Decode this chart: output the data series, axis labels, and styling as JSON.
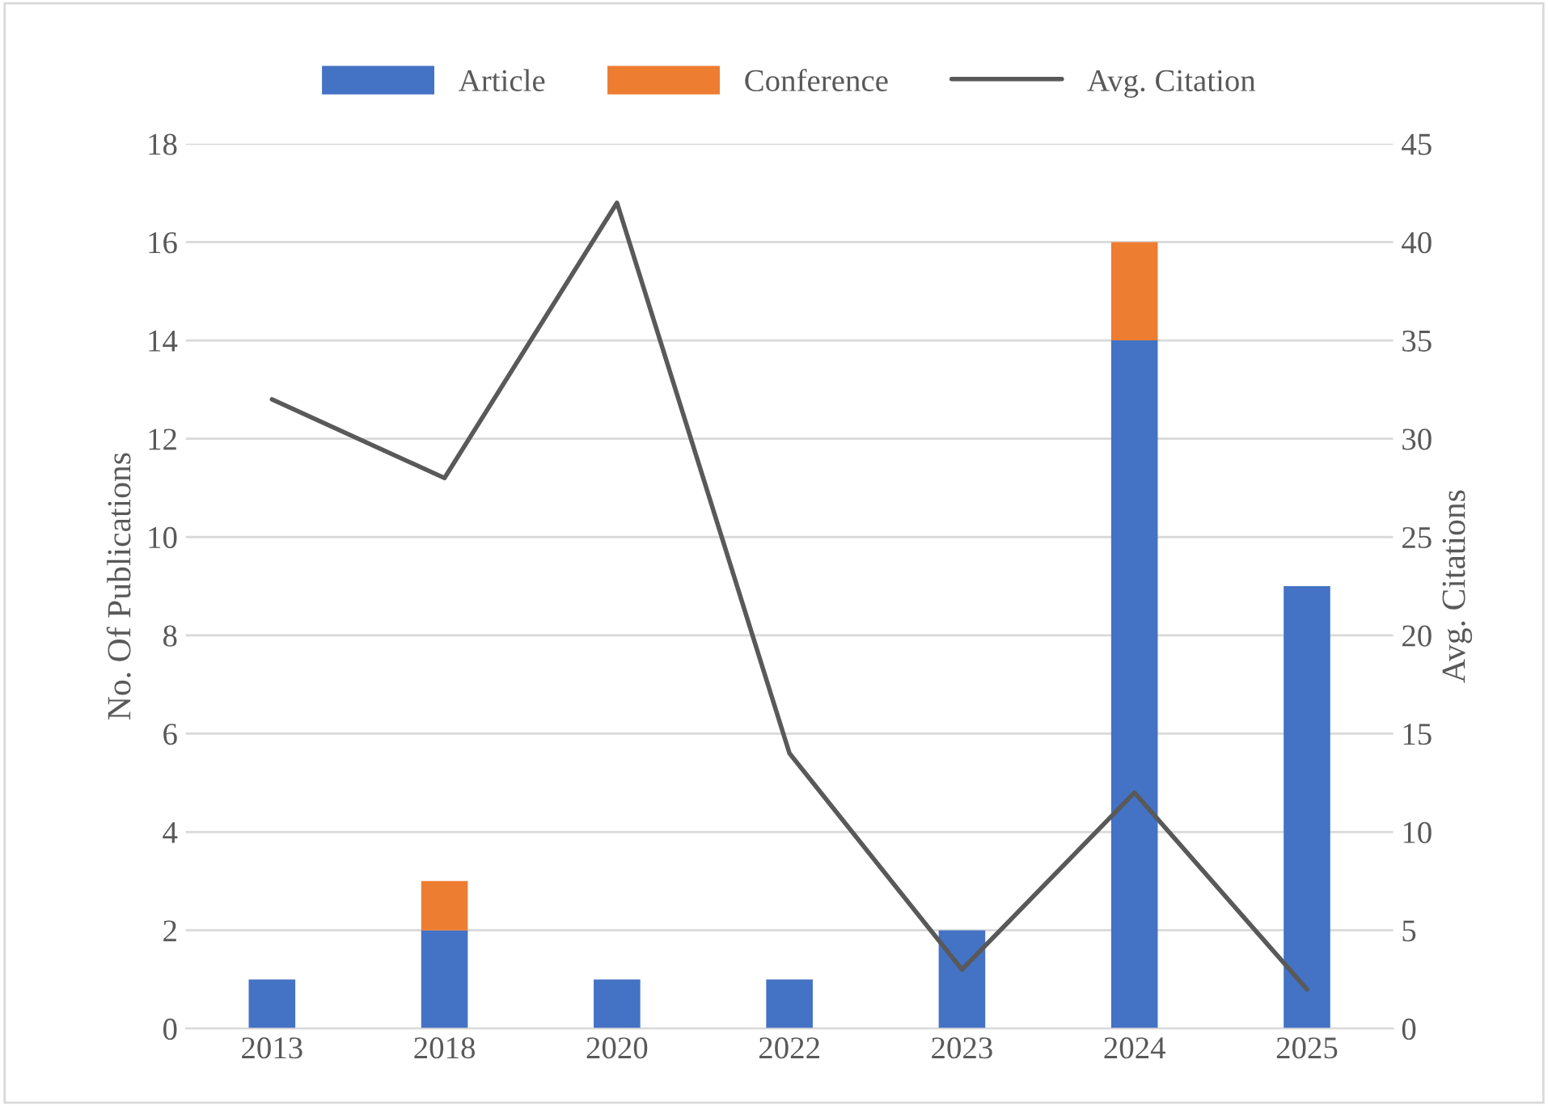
{
  "chart_data": {
    "type": "bar",
    "stacked": true,
    "categories": [
      "2013",
      "2018",
      "2020",
      "2022",
      "2023",
      "2024",
      "2025"
    ],
    "series": [
      {
        "name": "Article",
        "color": "#4472c4",
        "values": [
          1,
          2,
          1,
          1,
          2,
          14,
          9
        ]
      },
      {
        "name": "Conference",
        "color": "#ed7d31",
        "values": [
          0,
          1,
          0,
          0,
          0,
          2,
          0
        ]
      },
      {
        "name": "Avg. Citation",
        "type": "line",
        "axis": "y2",
        "color": "#595959",
        "values": [
          32,
          28,
          42,
          14,
          3,
          12,
          2
        ]
      }
    ],
    "ylabel": "No. Of Publications",
    "y2label": "Avg. Citations",
    "ylim": [
      0,
      18
    ],
    "yticks": [
      0,
      2,
      4,
      6,
      8,
      10,
      12,
      14,
      16,
      18
    ],
    "y2lim": [
      0,
      45
    ],
    "y2ticks": [
      0,
      5,
      10,
      15,
      20,
      25,
      30,
      35,
      40,
      45
    ],
    "grid": "y",
    "legend": "top",
    "marker": "none",
    "line_style": "solid"
  }
}
